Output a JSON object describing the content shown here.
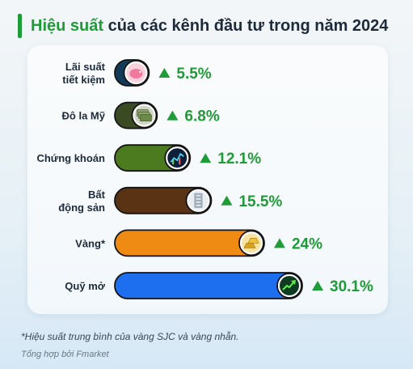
{
  "header": {
    "title_highlight": "Hiệu suất",
    "title_rest": " của các kênh đầu tư trong năm 2024"
  },
  "footer": {
    "note": "*Hiệu suất trung bình của vàng SJC và vàng nhẫn.",
    "source": "Tổng hợp bởi Fmarket"
  },
  "colors": {
    "accent": "#1f9b38",
    "up_arrow": "#1f9b38",
    "value_text": "#1f9b38"
  },
  "chart_data": {
    "type": "bar",
    "orientation": "horizontal",
    "categories": [
      [
        "Lãi suất",
        "tiết kiệm"
      ],
      [
        "Đô la Mỹ"
      ],
      [
        "Chứng khoán"
      ],
      [
        "Bất",
        "động sản"
      ],
      [
        "Vàng*"
      ],
      [
        "Quỹ mở"
      ]
    ],
    "values": [
      5.5,
      6.8,
      12.1,
      15.5,
      24,
      30.1
    ],
    "value_labels": [
      "5.5%",
      "6.8%",
      "12.1%",
      "15.5%",
      "24%",
      "30.1%"
    ],
    "unit": "%",
    "bar_colors": [
      "#143a5a",
      "#3a4a22",
      "#4b7a1f",
      "#5a3214",
      "#ef8a12",
      "#1e6ef0"
    ],
    "icons": [
      "piggy-bank-icon",
      "dollar-bills-icon",
      "stock-chart-icon",
      "building-icon",
      "gold-bars-icon",
      "growth-arrow-icon"
    ],
    "trend": "up",
    "xlim": [
      0,
      30.1
    ],
    "grid": false,
    "legend": "none"
  }
}
